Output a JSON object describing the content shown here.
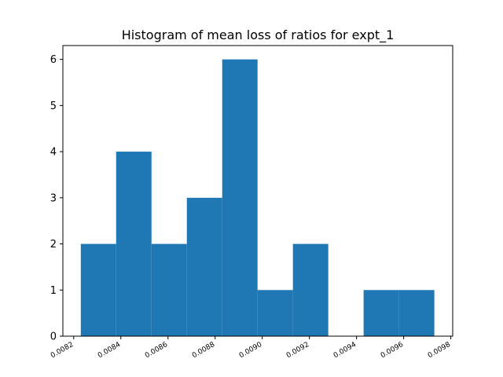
{
  "chart_data": {
    "type": "bar",
    "title": "Histogram of mean loss of ratios for expt_1",
    "xlabel": "",
    "ylabel": "",
    "bins": [
      {
        "start": 0.00823,
        "end": 0.00838,
        "count": 2
      },
      {
        "start": 0.00838,
        "end": 0.00853,
        "count": 4
      },
      {
        "start": 0.00853,
        "end": 0.00868,
        "count": 2
      },
      {
        "start": 0.00868,
        "end": 0.00883,
        "count": 3
      },
      {
        "start": 0.00883,
        "end": 0.00898,
        "count": 6
      },
      {
        "start": 0.00898,
        "end": 0.00913,
        "count": 1
      },
      {
        "start": 0.00913,
        "end": 0.00928,
        "count": 2
      },
      {
        "start": 0.00928,
        "end": 0.00943,
        "count": 0
      },
      {
        "start": 0.00943,
        "end": 0.00958,
        "count": 1
      },
      {
        "start": 0.00958,
        "end": 0.00973,
        "count": 1
      }
    ],
    "xlim": [
      0.008154,
      0.009808
    ],
    "ylim": [
      0,
      6.3
    ],
    "xticks": [
      {
        "value": 0.0082,
        "label": "0.0082"
      },
      {
        "value": 0.0084,
        "label": "0.0084"
      },
      {
        "value": 0.0086,
        "label": "0.0086"
      },
      {
        "value": 0.0088,
        "label": "0.0088"
      },
      {
        "value": 0.009,
        "label": "0.0090"
      },
      {
        "value": 0.0092,
        "label": "0.0092"
      },
      {
        "value": 0.0094,
        "label": "0.0094"
      },
      {
        "value": 0.0096,
        "label": "0.0096"
      },
      {
        "value": 0.0098,
        "label": "0.0098"
      }
    ],
    "yticks": [
      {
        "value": 0,
        "label": "0"
      },
      {
        "value": 1,
        "label": "1"
      },
      {
        "value": 2,
        "label": "2"
      },
      {
        "value": 3,
        "label": "3"
      },
      {
        "value": 4,
        "label": "4"
      },
      {
        "value": 5,
        "label": "5"
      },
      {
        "value": 6,
        "label": "6"
      }
    ],
    "bar_color": "#1f77b4",
    "grid": false,
    "legend": "none"
  }
}
